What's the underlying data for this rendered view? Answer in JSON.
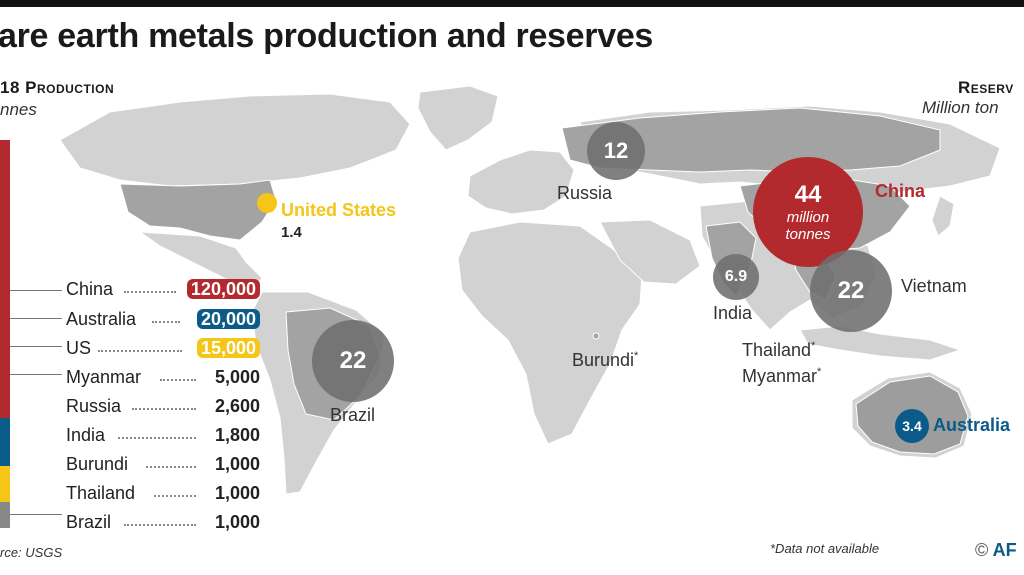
{
  "title": "are earth metals production and reserves",
  "production": {
    "title": "18 Production",
    "unit": "nnes",
    "items": [
      {
        "country": "China",
        "value": "120,000",
        "highlight": "#b22a2e"
      },
      {
        "country": "Australia",
        "value": "20,000",
        "highlight": "#0b5b8a"
      },
      {
        "country": "US",
        "value": "15,000",
        "highlight": "#f5c518"
      },
      {
        "country": "Myanmar",
        "value": "5,000"
      },
      {
        "country": "Russia",
        "value": "2,600"
      },
      {
        "country": "India",
        "value": "1,800"
      },
      {
        "country": "Burundi",
        "value": "1,000"
      },
      {
        "country": "Thailand",
        "value": "1,000"
      },
      {
        "country": "Brazil",
        "value": "1,000"
      }
    ],
    "stack_colors": {
      "china": "#b22a2e",
      "australia": "#0b5b8a",
      "us": "#f5c518",
      "others": "#888888"
    }
  },
  "reserves": {
    "title": "Reserv",
    "unit": "Million ton",
    "united_states": {
      "label": "United States",
      "value": "1.4",
      "color": "#f5c518"
    },
    "russia": {
      "label": "Russia",
      "value": "12"
    },
    "china": {
      "label": "China",
      "value": "44",
      "sub1": "million",
      "sub2": "tonnes",
      "color": "#b22a2e"
    },
    "india": {
      "label": "India",
      "value": "6.9"
    },
    "vietnam": {
      "label": "Vietnam",
      "value": "22"
    },
    "brazil": {
      "label": "Brazil",
      "value": "22"
    },
    "australia": {
      "label": "Australia",
      "value": "3.4",
      "color": "#0b5b8a"
    },
    "burundi": {
      "label": "Burundi",
      "mark": "*"
    },
    "thailand": {
      "label": "Thailand",
      "mark": "*"
    },
    "myanmar": {
      "label": "Myanmar",
      "mark": "*"
    }
  },
  "source": "rce: USGS",
  "footnote": "*Data not available",
  "credit": {
    "symbol": "©",
    "text": "AF"
  },
  "colors": {
    "land": "#cfcfcf",
    "land_dark": "#9a9a9a",
    "bubble_gray": "#6e6e6e"
  }
}
